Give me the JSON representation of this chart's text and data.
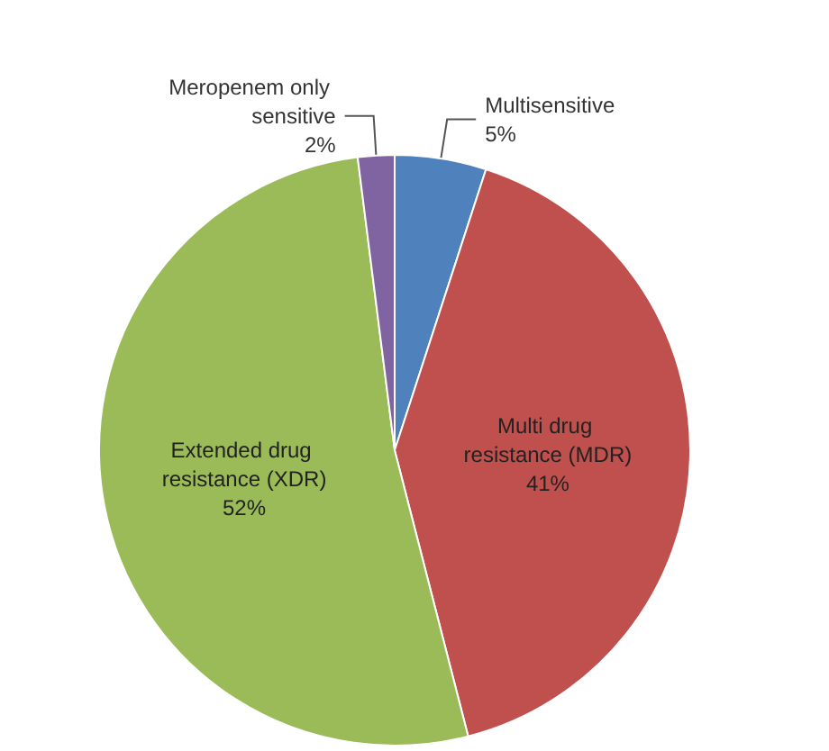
{
  "chart_data": {
    "type": "pie",
    "categories": [
      "Multisensitive",
      "Multi drug resistance (MDR)",
      "Extended drug resistance (XDR)",
      "Meropenem only sensitive"
    ],
    "values": [
      5,
      41,
      52,
      2
    ],
    "value_labels": [
      "5%",
      "41%",
      "52%",
      "2%"
    ],
    "colors": [
      "#4f81bd",
      "#c0504d",
      "#9bbb59",
      "#8064a2"
    ],
    "legend": false
  }
}
